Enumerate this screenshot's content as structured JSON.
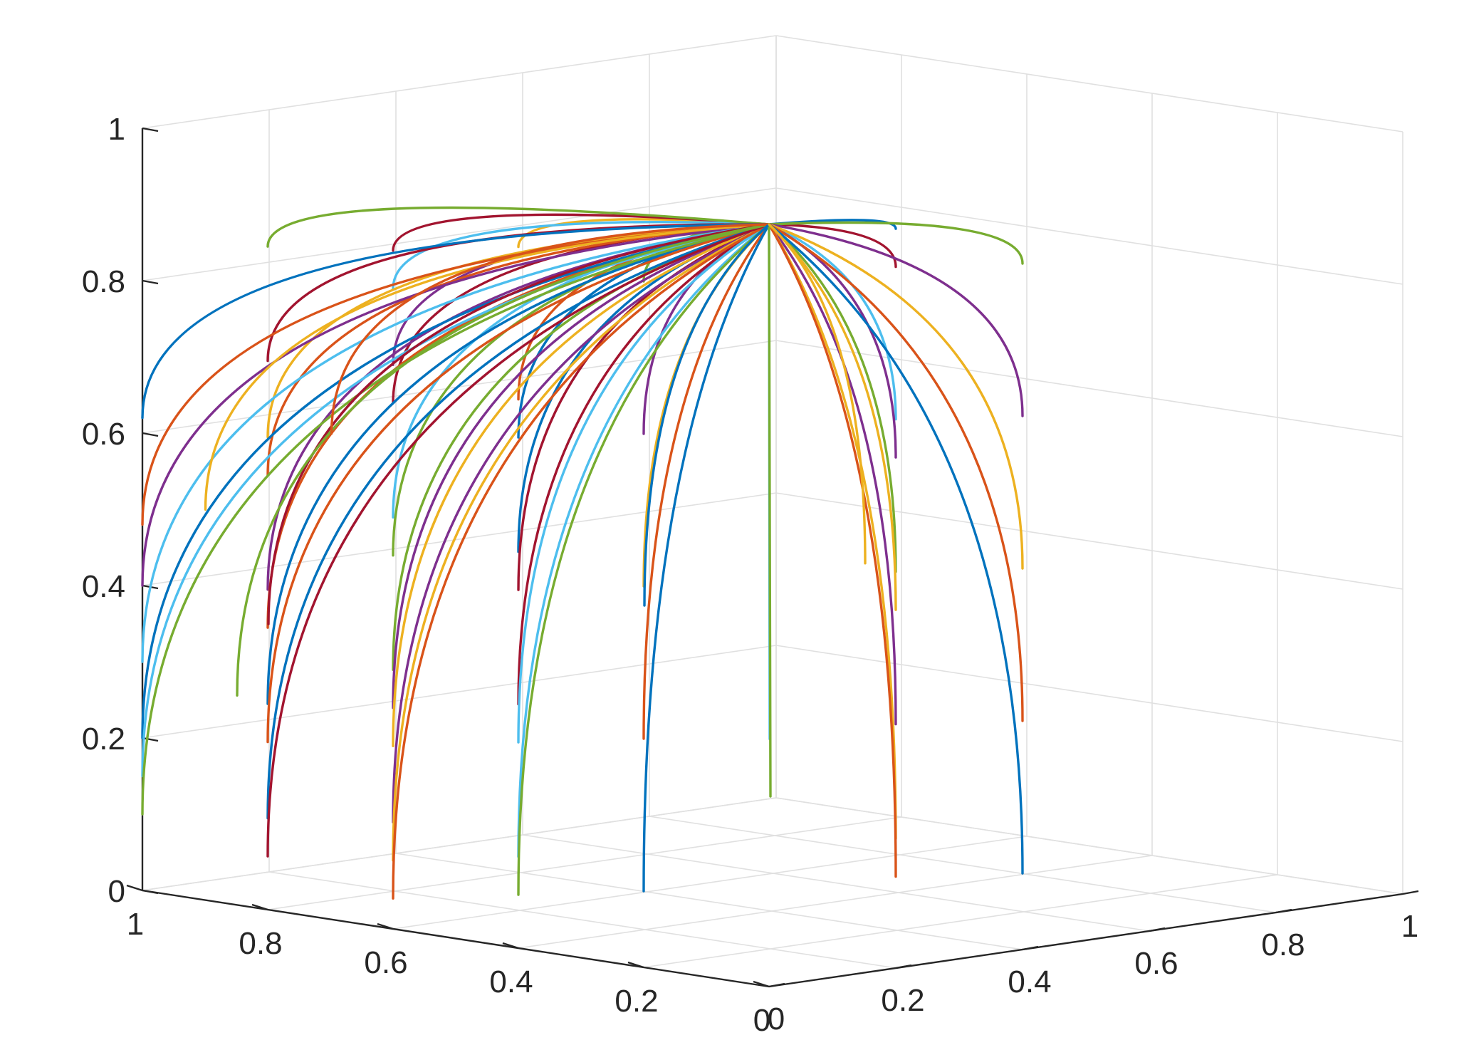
{
  "chart_data": {
    "type": "line",
    "subtype": "3d-trajectories",
    "title": "",
    "xlabel": "",
    "ylabel": "",
    "zlabel": "",
    "xlim": [
      0,
      1
    ],
    "ylim": [
      0,
      1
    ],
    "zlim": [
      0,
      1
    ],
    "grid": true,
    "legend": "none",
    "x_ticks": [
      "0",
      "0.2",
      "0.4",
      "0.6",
      "0.8",
      "1"
    ],
    "y_ticks": [
      "0",
      "0.2",
      "0.4",
      "0.6",
      "0.8",
      "1"
    ],
    "z_ticks": [
      "0",
      "0.2",
      "0.4",
      "0.6",
      "0.8",
      "1"
    ],
    "x_tick_values": [
      0,
      0.2,
      0.4,
      0.6,
      0.8,
      1
    ],
    "y_tick_values": [
      0,
      0.2,
      0.4,
      0.6,
      0.8,
      1
    ],
    "z_tick_values": [
      0,
      0.2,
      0.4,
      0.6,
      0.8,
      1
    ],
    "colors": [
      "#0072BD",
      "#D95319",
      "#EDB120",
      "#7E2F8E",
      "#77AC30",
      "#4DBEEE",
      "#A2142F"
    ],
    "convergence_point": [
      0,
      0,
      1
    ],
    "curve_bend": 0.35,
    "series": [
      {
        "start": [
          0.2,
          0,
          0.9
        ],
        "color": "#77AC30"
      },
      {
        "start": [
          0.2,
          0,
          0.7
        ],
        "color": "#7E2F8E"
      },
      {
        "start": [
          0.2,
          0,
          0.5
        ],
        "color": "#EDB120"
      },
      {
        "start": [
          0.2,
          0,
          0.3
        ],
        "color": "#D95319"
      },
      {
        "start": [
          0.2,
          0,
          0.1
        ],
        "color": "#0072BD"
      },
      {
        "start": [
          0.4,
          0,
          0.92
        ],
        "color": "#EDB120"
      },
      {
        "start": [
          0.4,
          0,
          0.72
        ],
        "color": "#D95319"
      },
      {
        "start": [
          0.4,
          0,
          0.67
        ],
        "color": "#0072BD"
      },
      {
        "start": [
          0.4,
          0,
          0.52
        ],
        "color": "#0072BD"
      },
      {
        "start": [
          0.4,
          0,
          0.47
        ],
        "color": "#A2142F"
      },
      {
        "start": [
          0.4,
          0,
          0.32
        ],
        "color": "#A2142F"
      },
      {
        "start": [
          0.4,
          0,
          0.27
        ],
        "color": "#4DBEEE"
      },
      {
        "start": [
          0.4,
          0,
          0.12
        ],
        "color": "#4DBEEE"
      },
      {
        "start": [
          0.4,
          0,
          0.07
        ],
        "color": "#77AC30"
      },
      {
        "start": [
          0.6,
          0,
          0.89
        ],
        "color": "#A2142F"
      },
      {
        "start": [
          0.6,
          0,
          0.84
        ],
        "color": "#4DBEEE"
      },
      {
        "start": [
          0.6,
          0,
          0.74
        ],
        "color": "#7E2F8E"
      },
      {
        "start": [
          0.6,
          0,
          0.69
        ],
        "color": "#A2142F"
      },
      {
        "start": [
          0.6,
          0,
          0.54
        ],
        "color": "#4DBEEE"
      },
      {
        "start": [
          0.6,
          0,
          0.49
        ],
        "color": "#77AC30"
      },
      {
        "start": [
          0.6,
          0,
          0.34
        ],
        "color": "#77AC30"
      },
      {
        "start": [
          0.6,
          0,
          0.29
        ],
        "color": "#7E2F8E"
      },
      {
        "start": [
          0.6,
          0,
          0.24
        ],
        "color": "#EDB120"
      },
      {
        "start": [
          0.6,
          0,
          0.14
        ],
        "color": "#7E2F8E"
      },
      {
        "start": [
          0.6,
          0,
          0.09
        ],
        "color": "#EDB120"
      },
      {
        "start": [
          0.6,
          0,
          0.04
        ],
        "color": "#D95319"
      },
      {
        "start": [
          0.8,
          0,
          0.87
        ],
        "color": "#77AC30"
      },
      {
        "start": [
          0.8,
          0,
          0.72
        ],
        "color": "#A2142F"
      },
      {
        "start": [
          0.8,
          0,
          0.62
        ],
        "color": "#EDB120"
      },
      {
        "start": [
          0.8,
          0,
          0.57
        ],
        "color": "#D95319"
      },
      {
        "start": [
          0.8,
          0,
          0.42
        ],
        "color": "#7E2F8E"
      },
      {
        "start": [
          0.8,
          0,
          0.37
        ],
        "color": "#D95319"
      },
      {
        "start": [
          0.8,
          0,
          0.27
        ],
        "color": "#0072BD"
      },
      {
        "start": [
          0.8,
          0,
          0.22
        ],
        "color": "#D95319"
      },
      {
        "start": [
          0.8,
          0,
          0.12
        ],
        "color": "#0072BD"
      },
      {
        "start": [
          0.8,
          0,
          0.07
        ],
        "color": "#A2142F"
      },
      {
        "start": [
          1,
          0,
          0.62
        ],
        "color": "#0072BD"
      },
      {
        "start": [
          1,
          0,
          0.48
        ],
        "color": "#D95319"
      },
      {
        "start": [
          1,
          0,
          0.4
        ],
        "color": "#7E2F8E"
      },
      {
        "start": [
          1,
          0,
          0.3
        ],
        "color": "#4DBEEE"
      },
      {
        "start": [
          1,
          0,
          0.2
        ],
        "color": "#0072BD"
      },
      {
        "start": [
          1,
          0,
          0.15
        ],
        "color": "#4DBEEE"
      },
      {
        "start": [
          1,
          0,
          0.1
        ],
        "color": "#77AC30"
      },
      {
        "start": [
          0.95,
          0.05,
          0.5
        ],
        "color": "#EDB120"
      },
      {
        "start": [
          0.9,
          0.1,
          0.35
        ],
        "color": "#A2142F"
      },
      {
        "start": [
          0.95,
          0.1,
          0.25
        ],
        "color": "#77AC30"
      },
      {
        "start": [
          0.85,
          0.15,
          0.6
        ],
        "color": "#D95319"
      },
      {
        "start": [
          0,
          0.2,
          0.97
        ],
        "color": "#0072BD"
      },
      {
        "start": [
          0,
          0.2,
          0.92
        ],
        "color": "#A2142F"
      },
      {
        "start": [
          0,
          0.2,
          0.72
        ],
        "color": "#4DBEEE"
      },
      {
        "start": [
          0,
          0.2,
          0.67
        ],
        "color": "#7E2F8E"
      },
      {
        "start": [
          0,
          0.2,
          0.52
        ],
        "color": "#77AC30"
      },
      {
        "start": [
          0,
          0.2,
          0.47
        ],
        "color": "#EDB120"
      },
      {
        "start": [
          0,
          0.2,
          0.32
        ],
        "color": "#7E2F8E"
      },
      {
        "start": [
          0,
          0.2,
          0.17
        ],
        "color": "#EDB120"
      },
      {
        "start": [
          0,
          0.2,
          0.12
        ],
        "color": "#D95319"
      },
      {
        "start": [
          0,
          0.4,
          0.9
        ],
        "color": "#77AC30"
      },
      {
        "start": [
          0,
          0.4,
          0.7
        ],
        "color": "#7E2F8E"
      },
      {
        "start": [
          0,
          0.4,
          0.5
        ],
        "color": "#EDB120"
      },
      {
        "start": [
          0,
          0.4,
          0.3
        ],
        "color": "#D95319"
      },
      {
        "start": [
          0,
          0.4,
          0.1
        ],
        "color": "#0072BD"
      },
      {
        "start": [
          0.1,
          0.1,
          0.3
        ],
        "color": "#4DBEEE"
      },
      {
        "start": [
          0.2,
          0.2,
          0.2
        ],
        "color": "#77AC30"
      },
      {
        "start": [
          0.3,
          0.1,
          0.45
        ],
        "color": "#0072BD"
      },
      {
        "start": [
          0.15,
          0.3,
          0.5
        ],
        "color": "#EDB120"
      }
    ]
  }
}
